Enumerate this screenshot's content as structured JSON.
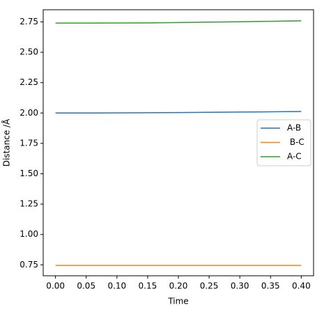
{
  "chart_data": {
    "type": "line",
    "x_label": "Time",
    "y_label": "Distance /Å",
    "x": [
      0,
      0.05,
      0.1,
      0.15,
      0.2,
      0.25,
      0.3,
      0.35,
      0.4
    ],
    "series": [
      {
        "name": "A-B",
        "color": "#1f77b4",
        "values": [
          2.0,
          2.0,
          2.001,
          2.002,
          2.004,
          2.006,
          2.008,
          2.01,
          2.012
        ]
      },
      {
        "name": " B-C",
        "color": "#ff7f0e",
        "values": [
          0.745,
          0.745,
          0.745,
          0.745,
          0.745,
          0.745,
          0.745,
          0.745,
          0.745
        ]
      },
      {
        "name": "A-C",
        "color": "#2ca02c",
        "values": [
          2.74,
          2.74,
          2.741,
          2.742,
          2.745,
          2.748,
          2.751,
          2.755,
          2.759
        ]
      }
    ],
    "xlim": [
      -0.02,
      0.42
    ],
    "ylim": [
      0.66,
      2.85
    ],
    "xticks": [
      {
        "value": 0,
        "label": "0.00"
      },
      0.05,
      {
        "value": 0.1,
        "label": "0.10"
      },
      0.15,
      {
        "value": 0.2,
        "label": "0.20"
      },
      0.25,
      {
        "value": 0.3,
        "label": "0.30"
      },
      0.35,
      {
        "value": 0.4,
        "label": "0.40"
      }
    ],
    "yticks": [
      0.75,
      {
        "value": 1,
        "label": "1.00"
      },
      1.25,
      {
        "value": 1.5,
        "label": "1.50"
      },
      1.75,
      {
        "value": 2,
        "label": "2.00"
      },
      2.25,
      {
        "value": 2.5,
        "label": "2.50"
      },
      2.75
    ],
    "legend": "right"
  }
}
